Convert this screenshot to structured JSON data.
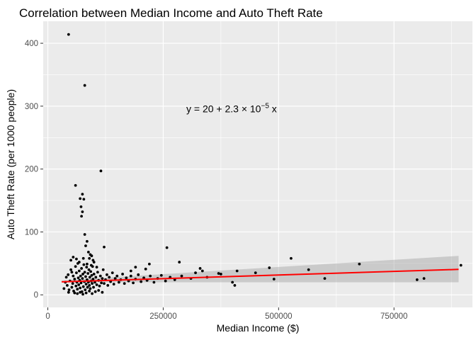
{
  "chart_data": {
    "type": "scatter",
    "title": "Correlation between Median Income and Auto Theft Rate",
    "xlabel": "Median Income ($)",
    "ylabel": "Auto Theft Rate (per 1000 people)",
    "xlim": [
      -10000,
      920000
    ],
    "ylim": [
      -20,
      435
    ],
    "x_ticks": [
      0,
      250000,
      500000,
      750000
    ],
    "x_tick_labels": [
      "0",
      "250000",
      "500000",
      "750000"
    ],
    "x_minor_ticks": [
      125000,
      375000,
      625000,
      875000
    ],
    "y_ticks": [
      0,
      100,
      200,
      300,
      400
    ],
    "y_tick_labels": [
      "0",
      "100",
      "200",
      "300",
      "400"
    ],
    "y_minor_ticks": [
      50,
      150,
      250,
      350
    ],
    "annotation": {
      "prefix": "y = 20 + 2.3 × 10",
      "exponent": "−5",
      "suffix": " x",
      "x": 300000,
      "y": 290
    },
    "regression": {
      "intercept": 20,
      "slope": 2.3e-05,
      "x_range": [
        30000,
        890000
      ],
      "ci_low": [
        20,
        20
      ],
      "ci_high": [
        23,
        62
      ]
    },
    "points": [
      [
        45000,
        414
      ],
      [
        80000,
        333
      ],
      [
        115000,
        197
      ],
      [
        60000,
        174
      ],
      [
        75000,
        160
      ],
      [
        78000,
        152
      ],
      [
        70000,
        153
      ],
      [
        72000,
        140
      ],
      [
        75000,
        132
      ],
      [
        73000,
        125
      ],
      [
        80000,
        96
      ],
      [
        85000,
        85
      ],
      [
        82000,
        78
      ],
      [
        88000,
        68
      ],
      [
        92000,
        64
      ],
      [
        95000,
        62
      ],
      [
        90000,
        58
      ],
      [
        98000,
        55
      ],
      [
        122000,
        76
      ],
      [
        258000,
        75
      ],
      [
        220000,
        49
      ],
      [
        212000,
        41
      ],
      [
        190000,
        44
      ],
      [
        180000,
        38
      ],
      [
        285000,
        52
      ],
      [
        330000,
        42
      ],
      [
        335000,
        38
      ],
      [
        370000,
        34
      ],
      [
        375000,
        33
      ],
      [
        410000,
        38
      ],
      [
        405000,
        15
      ],
      [
        400000,
        20
      ],
      [
        450000,
        35
      ],
      [
        480000,
        43
      ],
      [
        490000,
        25
      ],
      [
        527000,
        58
      ],
      [
        565000,
        40
      ],
      [
        600000,
        26
      ],
      [
        675000,
        49
      ],
      [
        800000,
        24
      ],
      [
        815000,
        26
      ],
      [
        895000,
        47
      ],
      [
        35000,
        10
      ],
      [
        38000,
        20
      ],
      [
        40000,
        28
      ],
      [
        42000,
        15
      ],
      [
        44000,
        32
      ],
      [
        46000,
        8
      ],
      [
        48000,
        22
      ],
      [
        50000,
        40
      ],
      [
        52000,
        12
      ],
      [
        54000,
        18
      ],
      [
        55000,
        30
      ],
      [
        56000,
        6
      ],
      [
        58000,
        25
      ],
      [
        60000,
        45
      ],
      [
        61000,
        14
      ],
      [
        62000,
        35
      ],
      [
        63000,
        20
      ],
      [
        64000,
        9
      ],
      [
        65000,
        50
      ],
      [
        66000,
        27
      ],
      [
        67000,
        16
      ],
      [
        68000,
        38
      ],
      [
        69000,
        23
      ],
      [
        70000,
        11
      ],
      [
        71000,
        30
      ],
      [
        72000,
        19
      ],
      [
        73000,
        42
      ],
      [
        74000,
        5
      ],
      [
        75000,
        26
      ],
      [
        76000,
        33
      ],
      [
        77000,
        13
      ],
      [
        78000,
        48
      ],
      [
        79000,
        21
      ],
      [
        80000,
        36
      ],
      [
        81000,
        8
      ],
      [
        82000,
        29
      ],
      [
        83000,
        17
      ],
      [
        84000,
        44
      ],
      [
        85000,
        24
      ],
      [
        86000,
        12
      ],
      [
        87000,
        34
      ],
      [
        88000,
        20
      ],
      [
        89000,
        40
      ],
      [
        90000,
        15
      ],
      [
        91000,
        28
      ],
      [
        92000,
        10
      ],
      [
        93000,
        37
      ],
      [
        94000,
        22
      ],
      [
        95000,
        31
      ],
      [
        96000,
        18
      ],
      [
        97000,
        45
      ],
      [
        98000,
        25
      ],
      [
        99000,
        12
      ],
      [
        100000,
        33
      ],
      [
        102000,
        20
      ],
      [
        104000,
        28
      ],
      [
        106000,
        16
      ],
      [
        108000,
        36
      ],
      [
        110000,
        23
      ],
      [
        112000,
        14
      ],
      [
        114000,
        30
      ],
      [
        116000,
        19
      ],
      [
        118000,
        26
      ],
      [
        120000,
        40
      ],
      [
        122000,
        18
      ],
      [
        125000,
        24
      ],
      [
        128000,
        32
      ],
      [
        130000,
        15
      ],
      [
        133000,
        28
      ],
      [
        136000,
        21
      ],
      [
        140000,
        35
      ],
      [
        143000,
        17
      ],
      [
        146000,
        26
      ],
      [
        150000,
        30
      ],
      [
        154000,
        20
      ],
      [
        158000,
        24
      ],
      [
        162000,
        33
      ],
      [
        166000,
        18
      ],
      [
        170000,
        27
      ],
      [
        175000,
        22
      ],
      [
        180000,
        30
      ],
      [
        185000,
        19
      ],
      [
        190000,
        25
      ],
      [
        196000,
        32
      ],
      [
        202000,
        21
      ],
      [
        208000,
        27
      ],
      [
        215000,
        23
      ],
      [
        222000,
        30
      ],
      [
        230000,
        20
      ],
      [
        238000,
        26
      ],
      [
        246000,
        31
      ],
      [
        255000,
        22
      ],
      [
        265000,
        28
      ],
      [
        275000,
        24
      ],
      [
        290000,
        30
      ],
      [
        310000,
        26
      ],
      [
        320000,
        35
      ],
      [
        345000,
        28
      ],
      [
        50000,
        55
      ],
      [
        55000,
        60
      ],
      [
        62000,
        57
      ],
      [
        68000,
        52
      ],
      [
        77000,
        58
      ],
      [
        85000,
        49
      ],
      [
        94000,
        47
      ],
      [
        100000,
        52
      ],
      [
        106000,
        44
      ],
      [
        58000,
        3
      ],
      [
        64000,
        2
      ],
      [
        70000,
        4
      ],
      [
        76000,
        1
      ],
      [
        83000,
        3
      ],
      [
        90000,
        6
      ],
      [
        96000,
        2
      ],
      [
        103000,
        5
      ],
      [
        110000,
        7
      ],
      [
        118000,
        4
      ],
      [
        45000,
        4
      ],
      [
        52000,
        36
      ]
    ]
  }
}
